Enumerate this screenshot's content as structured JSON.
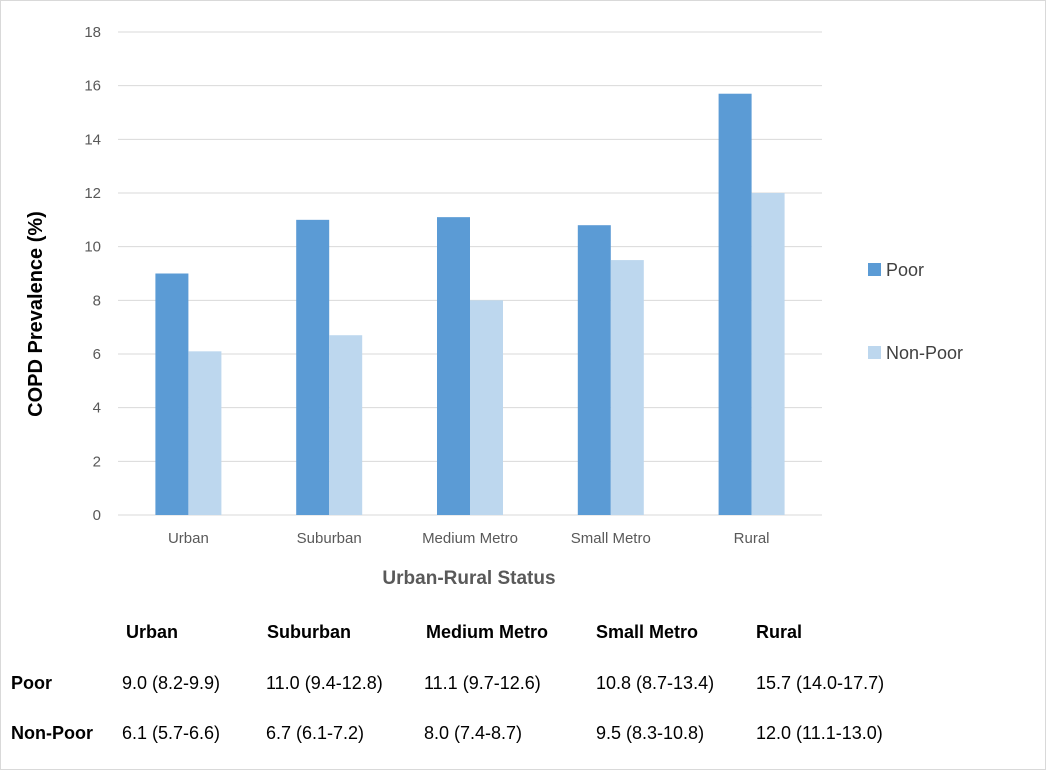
{
  "chart_data": {
    "type": "bar",
    "categories": [
      "Urban",
      "Suburban",
      "Medium Metro",
      "Small Metro",
      "Rural"
    ],
    "series": [
      {
        "name": "Poor",
        "values": [
          9.0,
          11.0,
          11.1,
          10.8,
          15.7
        ],
        "color": "#5b9bd5"
      },
      {
        "name": "Non-Poor",
        "values": [
          6.1,
          6.7,
          8.0,
          9.5,
          12.0
        ],
        "color": "#bdd7ee"
      }
    ],
    "title": "",
    "xlabel": "Urban-Rural Status",
    "ylabel": "COPD Prevalence (%)",
    "ylim": [
      0,
      18
    ],
    "yticks": [
      0,
      2,
      4,
      6,
      8,
      10,
      12,
      14,
      16,
      18
    ],
    "grid": true,
    "legend": "right"
  },
  "table": {
    "headers": [
      "Urban",
      "Suburban",
      "Medium Metro",
      "Small Metro",
      "Rural"
    ],
    "rows": [
      {
        "label": "Poor",
        "cells": [
          "9.0 (8.2-9.9)",
          "11.0 (9.4-12.8)",
          "11.1 (9.7-12.6)",
          "10.8 (8.7-13.4)",
          "15.7 (14.0-17.7)"
        ]
      },
      {
        "label": "Non-Poor",
        "cells": [
          "6.1 (5.7-6.6)",
          "6.7 (6.1-7.2)",
          "8.0 (7.4-8.7)",
          "9.5 (8.3-10.8)",
          "12.0 (11.1-13.0)"
        ]
      }
    ]
  }
}
